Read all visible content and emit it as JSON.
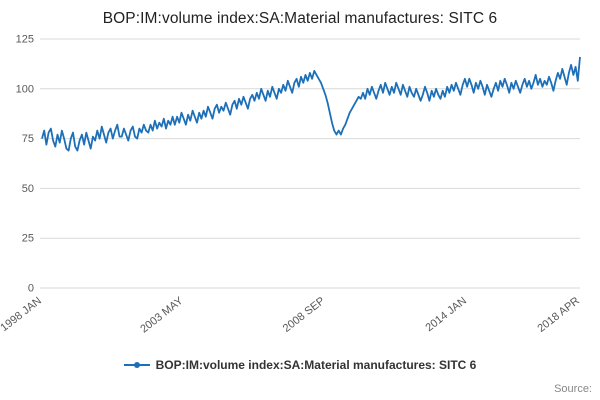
{
  "title": "BOP:IM:volume index:SA:Material manufactures: SITC 6",
  "legend": {
    "label": "BOP:IM:volume index:SA:Material manufactures: SITC 6"
  },
  "source": "Source:",
  "colors": {
    "line": "#1d70b8",
    "grid": "#d9d9d9",
    "axis_text": "#595959",
    "title_text": "#222222"
  },
  "chart_data": {
    "type": "line",
    "title": "BOP:IM:volume index:SA:Material manufactures: SITC 6",
    "xlabel": "",
    "ylabel": "",
    "ylim": [
      0,
      125
    ],
    "yticks": [
      0,
      25,
      50,
      75,
      100,
      125
    ],
    "grid": "horizontal",
    "legend_position": "bottom",
    "frequency": "monthly",
    "x_start": "1998 JAN",
    "x_end": "2018 APR",
    "xticks": [
      {
        "index": 0,
        "label": "1998 JAN"
      },
      {
        "index": 64,
        "label": "2003 MAY"
      },
      {
        "index": 128,
        "label": "2008 SEP"
      },
      {
        "index": 192,
        "label": "2014 JAN"
      },
      {
        "index": 243,
        "label": "2018 APR"
      }
    ],
    "values": [
      75,
      79,
      72,
      78,
      80,
      74,
      71,
      77,
      73,
      79,
      75,
      70,
      69,
      75,
      78,
      71,
      69,
      74,
      77,
      72,
      78,
      74,
      70,
      76,
      74,
      79,
      75,
      81,
      77,
      73,
      78,
      80,
      75,
      79,
      82,
      76,
      76,
      80,
      77,
      74,
      79,
      81,
      76,
      75,
      80,
      78,
      82,
      79,
      78,
      82,
      79,
      84,
      80,
      83,
      81,
      85,
      80,
      84,
      82,
      86,
      82,
      86,
      83,
      88,
      85,
      82,
      87,
      84,
      89,
      86,
      83,
      88,
      85,
      89,
      86,
      91,
      88,
      85,
      90,
      92,
      88,
      91,
      89,
      93,
      90,
      87,
      92,
      94,
      90,
      95,
      92,
      96,
      93,
      90,
      95,
      97,
      94,
      98,
      95,
      100,
      97,
      94,
      99,
      96,
      101,
      98,
      95,
      100,
      98,
      102,
      99,
      104,
      101,
      98,
      103,
      105,
      101,
      106,
      103,
      107,
      104,
      108,
      105,
      109,
      107,
      105,
      103,
      100,
      97,
      93,
      88,
      83,
      79,
      77,
      79,
      77,
      80,
      82,
      85,
      88,
      90,
      92,
      94,
      96,
      95,
      98,
      95,
      100,
      97,
      101,
      98,
      95,
      99,
      102,
      98,
      103,
      100,
      97,
      101,
      98,
      103,
      100,
      97,
      102,
      99,
      96,
      101,
      98,
      96,
      100,
      97,
      94,
      97,
      101,
      98,
      94,
      99,
      96,
      100,
      97,
      95,
      99,
      96,
      101,
      98,
      102,
      99,
      103,
      100,
      97,
      102,
      105,
      101,
      105,
      102,
      98,
      103,
      100,
      104,
      101,
      97,
      102,
      99,
      96,
      100,
      103,
      99,
      104,
      101,
      105,
      102,
      98,
      103,
      100,
      104,
      101,
      98,
      102,
      105,
      101,
      104,
      100,
      103,
      107,
      102,
      105,
      101,
      104,
      102,
      106,
      103,
      99,
      104,
      108,
      105,
      110,
      106,
      102,
      108,
      112,
      107,
      111,
      104,
      116
    ]
  }
}
